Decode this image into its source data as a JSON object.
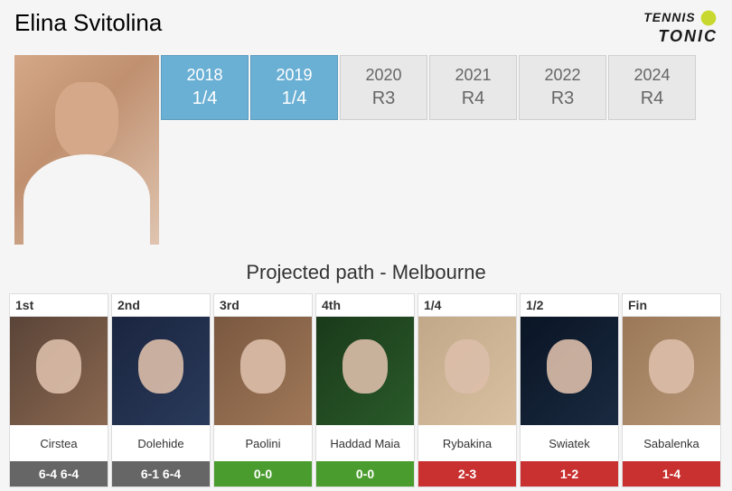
{
  "player_name": "Elina Svitolina",
  "logo": {
    "top": "TENNIS",
    "bottom": "TONIC"
  },
  "history": [
    {
      "year": "2018",
      "result": "1/4",
      "highlight": true
    },
    {
      "year": "2019",
      "result": "1/4",
      "highlight": true
    },
    {
      "year": "2020",
      "result": "R3",
      "highlight": false
    },
    {
      "year": "2021",
      "result": "R4",
      "highlight": false
    },
    {
      "year": "2022",
      "result": "R3",
      "highlight": false
    },
    {
      "year": "2024",
      "result": "R4",
      "highlight": false
    }
  ],
  "projected_title": "Projected path - Melbourne",
  "opponents": [
    {
      "round": "1st",
      "name": "Cirstea",
      "result": "6-4 6-4",
      "result_type": "done",
      "photo_class": "p0"
    },
    {
      "round": "2nd",
      "name": "Dolehide",
      "result": "6-1 6-4",
      "result_type": "done",
      "photo_class": "p1"
    },
    {
      "round": "3rd",
      "name": "Paolini",
      "result": "0-0",
      "result_type": "green",
      "photo_class": "p2"
    },
    {
      "round": "4th",
      "name": "Haddad Maia",
      "result": "0-0",
      "result_type": "green",
      "photo_class": "p3"
    },
    {
      "round": "1/4",
      "name": "Rybakina",
      "result": "2-3",
      "result_type": "red",
      "photo_class": "p4"
    },
    {
      "round": "1/2",
      "name": "Swiatek",
      "result": "1-2",
      "result_type": "red",
      "photo_class": "p5"
    },
    {
      "round": "Fin",
      "name": "Sabalenka",
      "result": "1-4",
      "result_type": "red",
      "photo_class": "p6"
    }
  ],
  "colors": {
    "highlight_bg": "#6aafd4",
    "normal_bg": "#e8e8e8",
    "green": "#4a9c2e",
    "red": "#c93030",
    "done": "#666666"
  }
}
